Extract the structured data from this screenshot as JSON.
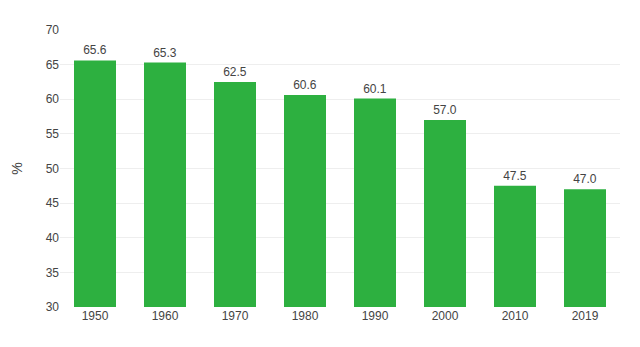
{
  "chart_data": {
    "type": "bar",
    "categories": [
      "1950",
      "1960",
      "1970",
      "1980",
      "1990",
      "2000",
      "2010",
      "2019"
    ],
    "values": [
      65.6,
      65.3,
      62.5,
      60.6,
      60.1,
      57.0,
      47.5,
      47.0
    ],
    "value_labels": [
      "65.6",
      "65.3",
      "62.5",
      "60.6",
      "60.1",
      "57.0",
      "47.5",
      "47.0"
    ],
    "data_labels": true,
    "color": "#2db040",
    "ylabel": "%",
    "ylim": [
      30,
      70
    ],
    "yticks": [
      30,
      35,
      40,
      45,
      50,
      55,
      60,
      65,
      70
    ],
    "grid": true
  }
}
